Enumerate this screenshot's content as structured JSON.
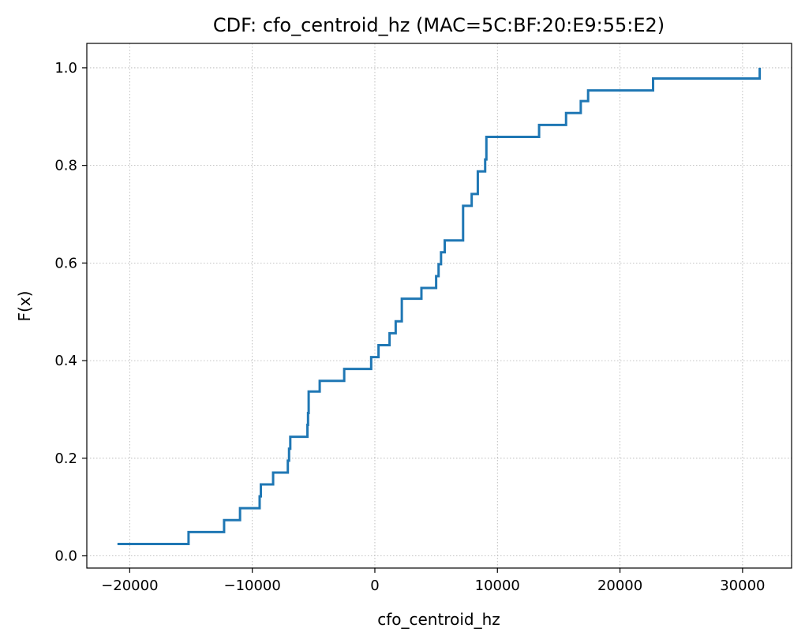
{
  "chart_data": {
    "type": "line",
    "step": true,
    "title": "CDF: cfo_centroid_hz (MAC=5C:BF:20:E9:55:E2)",
    "xlabel": "cfo_centroid_hz",
    "ylabel": "F(x)",
    "xlim": [
      -23500,
      34000
    ],
    "ylim": [
      -0.025,
      1.05
    ],
    "xticks": [
      -20000,
      -10000,
      0,
      10000,
      20000,
      30000
    ],
    "xtick_labels": [
      "−20000",
      "−10000",
      "0",
      "10000",
      "20000",
      "30000"
    ],
    "yticks": [
      0.0,
      0.2,
      0.4,
      0.6,
      0.8,
      1.0
    ],
    "ytick_labels": [
      "0.0",
      "0.2",
      "0.4",
      "0.6",
      "0.8",
      "1.0"
    ],
    "grid": true,
    "line_color": "#1f77b4",
    "series": [
      {
        "x": [
          -21000,
          -15200,
          -12300,
          -11000,
          -9400,
          -9300,
          -8300,
          -7100,
          -7000,
          -6900,
          -5500,
          -5450,
          -5400,
          -4500,
          -2500,
          -300,
          300,
          1200,
          1700,
          2200,
          3800,
          5000,
          5200,
          5400,
          5700,
          7200,
          7900,
          8400,
          9000,
          9100,
          13400,
          15600,
          16800,
          17400,
          22700,
          31400
        ],
        "y": [
          0.0244,
          0.0488,
          0.0732,
          0.0976,
          0.122,
          0.1463,
          0.1707,
          0.1951,
          0.2195,
          0.2439,
          0.2683,
          0.2927,
          0.3366,
          0.3585,
          0.3829,
          0.4073,
          0.4317,
          0.4561,
          0.4805,
          0.5268,
          0.5488,
          0.5732,
          0.5976,
          0.622,
          0.6463,
          0.7171,
          0.7415,
          0.7878,
          0.8122,
          0.8585,
          0.8829,
          0.9073,
          0.9317,
          0.9537,
          0.978,
          1.0
        ]
      }
    ]
  }
}
